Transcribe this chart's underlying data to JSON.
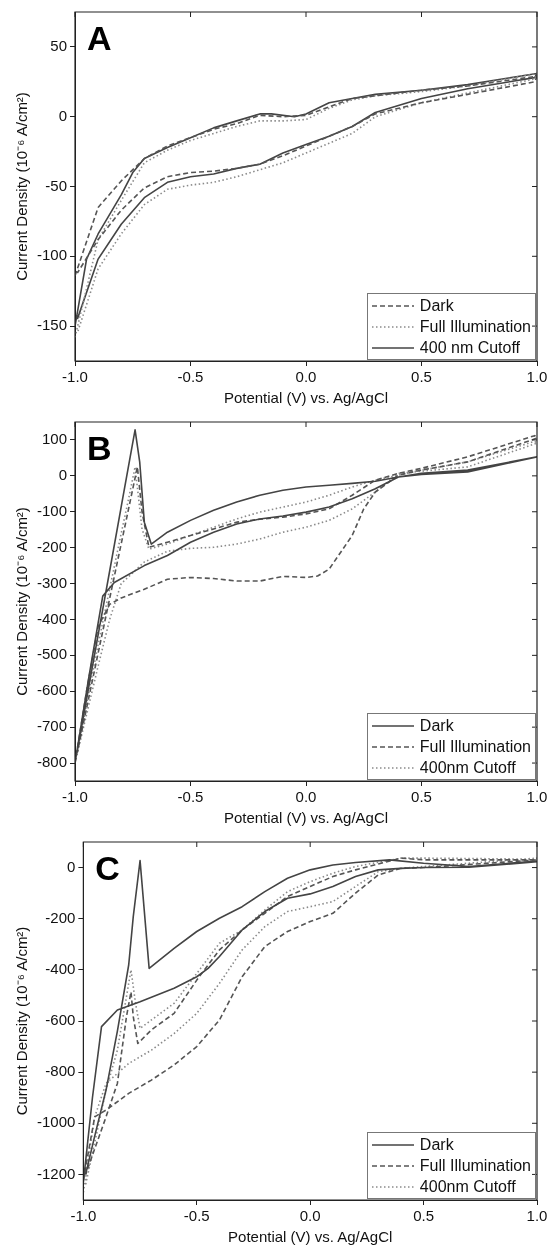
{
  "chart_data": [
    {
      "type": "line",
      "xlabel": "Potential (V) vs. Ag/AgCl",
      "ylabel": "Current Density (10⁻⁶ A/cm²)",
      "annotations": [
        "A"
      ],
      "xlim": [
        -1,
        1
      ],
      "xticks": [
        {
          "value": -1,
          "label": "-1.0"
        },
        {
          "value": -0.5,
          "label": "-0.5"
        },
        {
          "value": 0,
          "label": "0.0"
        },
        {
          "value": 0.5,
          "label": "0.5"
        },
        {
          "value": 1,
          "label": "1.0"
        }
      ],
      "ylim": [
        -175,
        75
      ],
      "yticks": [
        -150,
        -100,
        -50,
        0,
        50
      ],
      "grid": false,
      "legend": "bottom right",
      "marker": "none",
      "series": [
        {
          "name": "Dark",
          "color": "#555555",
          "line_style": "dashed",
          "x": [
            -1,
            -0.9,
            -0.8,
            -0.7,
            -0.6,
            -0.5,
            -0.4,
            -0.3,
            -0.2,
            -0.1,
            0,
            0.1,
            0.2,
            0.3,
            0.5,
            0.7,
            1,
            0.99,
            0.7,
            0.5,
            0.3,
            0.2,
            0.1,
            0,
            -0.1,
            -0.2,
            -0.3,
            -0.4,
            -0.5,
            -0.6,
            -0.7,
            -0.8,
            -0.9,
            -0.99
          ],
          "values": [
            -114,
            -65,
            -46,
            -30,
            -21,
            -15,
            -9,
            -5,
            1,
            0,
            1,
            7,
            13,
            15,
            19,
            22,
            29,
            25,
            16,
            10,
            2,
            -7,
            -14,
            -21,
            -28,
            -34,
            -37,
            -39,
            -40,
            -43,
            -51,
            -67,
            -88,
            -112
          ]
        },
        {
          "name": "Full Illumination",
          "color": "#8a8a8a",
          "line_style": "dotted",
          "x": [
            -1,
            -0.9,
            -0.8,
            -0.7,
            -0.6,
            -0.5,
            -0.4,
            -0.3,
            -0.2,
            -0.1,
            0,
            0.1,
            0.2,
            0.3,
            0.5,
            0.7,
            1,
            0.99,
            0.7,
            0.5,
            0.3,
            0.2,
            0.1,
            0,
            -0.1,
            -0.2,
            -0.3,
            -0.4,
            -0.5,
            -0.6,
            -0.7,
            -0.8,
            -0.9,
            -0.99
          ],
          "values": [
            -158,
            -88,
            -60,
            -33,
            -24,
            -17,
            -12,
            -7,
            -3,
            -3,
            -2,
            6,
            12,
            15,
            18,
            22,
            31,
            27,
            17,
            10,
            0,
            -12,
            -19,
            -26,
            -33,
            -38,
            -43,
            -47,
            -49,
            -52,
            -63,
            -84,
            -109,
            -155
          ]
        },
        {
          "name": "400 nm Cutoff",
          "color": "#444444",
          "line_style": "solid",
          "x": [
            -1,
            -0.95,
            -0.9,
            -0.8,
            -0.75,
            -0.7,
            -0.6,
            -0.5,
            -0.4,
            -0.3,
            -0.2,
            -0.15,
            -0.05,
            0,
            0.1,
            0.2,
            0.3,
            0.5,
            0.7,
            1,
            0.99,
            0.7,
            0.5,
            0.3,
            0.2,
            0.1,
            0,
            -0.1,
            -0.2,
            -0.3,
            -0.4,
            -0.5,
            -0.6,
            -0.7,
            -0.8,
            -0.9,
            -0.99
          ],
          "values": [
            -150,
            -102,
            -84,
            -56,
            -40,
            -30,
            -22,
            -15,
            -8,
            -3,
            2,
            2,
            0,
            2,
            10,
            13,
            16,
            19,
            23,
            31,
            28,
            20,
            13,
            3,
            -7,
            -14,
            -20,
            -26,
            -34,
            -37,
            -41,
            -43,
            -47,
            -58,
            -77,
            -102,
            -145
          ]
        }
      ]
    },
    {
      "type": "line",
      "xlabel": "Potential (V) vs. Ag/AgCl",
      "ylabel": "Current Density (10⁻⁶ A/cm²)",
      "annotations": [
        "B"
      ],
      "xlim": [
        -1,
        1
      ],
      "xticks": [
        {
          "value": -1,
          "label": "-1.0"
        },
        {
          "value": -0.5,
          "label": "-0.5"
        },
        {
          "value": 0,
          "label": "0.0"
        },
        {
          "value": 0.5,
          "label": "0.5"
        },
        {
          "value": 1,
          "label": "1.0"
        }
      ],
      "ylim": [
        -850,
        150
      ],
      "yticks": [
        -800,
        -700,
        -600,
        -500,
        -400,
        -300,
        -200,
        -100,
        0,
        100
      ],
      "grid": false,
      "legend": "bottom right",
      "marker": "none",
      "series": [
        {
          "name": "Dark",
          "color": "#444444",
          "line_style": "solid",
          "x": [
            -1,
            -0.94,
            -0.88,
            -0.83,
            -0.7,
            -0.6,
            -0.5,
            -0.4,
            -0.3,
            -0.2,
            -0.1,
            0,
            0.1,
            0.2,
            0.3,
            0.4,
            0.5,
            0.7,
            1,
            0.7,
            0.5,
            0.4,
            0.3,
            0.2,
            0.1,
            0,
            -0.1,
            -0.2,
            -0.3,
            -0.4,
            -0.5,
            -0.6,
            -0.67,
            -0.7,
            -0.72,
            -0.74,
            -0.76,
            -0.8,
            -0.85,
            -0.9,
            -0.99
          ],
          "values": [
            -800,
            -560,
            -335,
            -297,
            -250,
            -222,
            -185,
            -157,
            -134,
            -120,
            -112,
            -101,
            -87,
            -64,
            -36,
            -3,
            7,
            16,
            53,
            11,
            4,
            -3,
            -15,
            -21,
            -26,
            -31,
            -40,
            -54,
            -73,
            -96,
            -124,
            -157,
            -190,
            -129,
            39,
            128,
            57,
            -86,
            -265,
            -443,
            -765
          ]
        },
        {
          "name": "Full Illumination",
          "color": "#555555",
          "line_style": "dashed",
          "x": [
            -1,
            -0.95,
            -0.9,
            -0.85,
            -0.8,
            -0.7,
            -0.6,
            -0.5,
            -0.4,
            -0.3,
            -0.2,
            -0.1,
            0,
            0.05,
            0.1,
            0.2,
            0.25,
            0.3,
            0.4,
            0.5,
            0.7,
            1,
            0.99,
            0.7,
            0.5,
            0.4,
            0.3,
            0.2,
            0.1,
            0,
            -0.1,
            -0.2,
            -0.3,
            -0.4,
            -0.5,
            -0.6,
            -0.68,
            -0.71,
            -0.73,
            -0.76,
            -0.8,
            -0.9,
            -0.99
          ],
          "values": [
            -800,
            -600,
            -420,
            -358,
            -340,
            -316,
            -288,
            -283,
            -286,
            -293,
            -293,
            -280,
            -283,
            -279,
            -260,
            -166,
            -92,
            -45,
            2,
            16,
            39,
            105,
            112,
            53,
            21,
            7,
            -12,
            -54,
            -92,
            -106,
            -115,
            -121,
            -129,
            -148,
            -166,
            -185,
            -199,
            -100,
            25,
            -67,
            -189,
            -494,
            -770
          ]
        },
        {
          "name": "400nm Cutoff",
          "color": "#8a8a8a",
          "line_style": "dotted",
          "x": [
            -1,
            -0.9,
            -0.85,
            -0.8,
            -0.7,
            -0.6,
            -0.5,
            -0.4,
            -0.3,
            -0.2,
            -0.1,
            0,
            0.1,
            0.2,
            0.3,
            0.4,
            0.5,
            0.7,
            1,
            0.99,
            0.7,
            0.5,
            0.4,
            0.3,
            0.2,
            0.1,
            0,
            -0.1,
            -0.2,
            -0.3,
            -0.4,
            -0.5,
            -0.6,
            -0.68,
            -0.71,
            -0.74,
            -0.77,
            -0.8,
            -0.9,
            -0.99
          ],
          "values": [
            -800,
            -530,
            -400,
            -300,
            -240,
            -210,
            -202,
            -199,
            -190,
            -176,
            -157,
            -143,
            -124,
            -92,
            -45,
            7,
            13,
            25,
            91,
            96,
            39,
            16,
            2,
            -12,
            -31,
            -54,
            -73,
            -87,
            -101,
            -120,
            -143,
            -166,
            -190,
            -204,
            -148,
            25,
            -70,
            -160,
            -470,
            -770
          ]
        }
      ]
    },
    {
      "type": "line",
      "xlabel": "Potential (V) vs. Ag/AgCl",
      "ylabel": "Current Density (10⁻⁶ A/cm²)",
      "annotations": [
        "C"
      ],
      "xlim": [
        -1,
        1
      ],
      "xticks": [
        {
          "value": -1,
          "label": "-1.0"
        },
        {
          "value": -0.5,
          "label": "-0.5"
        },
        {
          "value": 0,
          "label": "0.0"
        },
        {
          "value": 0.5,
          "label": "0.5"
        },
        {
          "value": 1,
          "label": "1.0"
        }
      ],
      "ylim": [
        -1300,
        100
      ],
      "yticks": [
        -1200,
        -1000,
        -800,
        -600,
        -400,
        -200,
        0
      ],
      "grid": false,
      "legend": "bottom right",
      "marker": "none",
      "series": [
        {
          "name": "Dark",
          "color": "#444444",
          "line_style": "solid",
          "x": [
            -1,
            -0.96,
            -0.92,
            -0.85,
            -0.75,
            -0.6,
            -0.5,
            -0.45,
            -0.4,
            -0.3,
            -0.2,
            -0.1,
            0,
            0.1,
            0.2,
            0.3,
            0.4,
            0.5,
            0.7,
            1,
            0.99,
            0.7,
            0.5,
            0.35,
            0.2,
            0.1,
            0,
            -0.1,
            -0.2,
            -0.3,
            -0.4,
            -0.5,
            -0.6,
            -0.71,
            -0.75,
            -0.78,
            -0.8,
            -0.85,
            -0.9,
            -0.95,
            -0.99
          ],
          "values": [
            -1230,
            -900,
            -622,
            -557,
            -525,
            -472,
            -427,
            -394,
            -348,
            -244,
            -172,
            -120,
            -103,
            -74,
            -35,
            -9,
            -3,
            0,
            1,
            23,
            25,
            4,
            17,
            30,
            20,
            10,
            -9,
            -42,
            -94,
            -153,
            -198,
            -250,
            -316,
            -394,
            27,
            -192,
            -380,
            -640,
            -870,
            -1050,
            -1200
          ]
        },
        {
          "name": "Full Illumination",
          "color": "#555555",
          "line_style": "dashed",
          "x": [
            -1,
            -0.95,
            -0.9,
            -0.8,
            -0.7,
            -0.6,
            -0.5,
            -0.4,
            -0.3,
            -0.2,
            -0.1,
            0,
            0.1,
            0.2,
            0.3,
            0.4,
            0.5,
            1,
            0.99,
            0.5,
            0.4,
            0.2,
            0.1,
            0,
            -0.1,
            -0.2,
            -0.3,
            -0.4,
            -0.5,
            -0.6,
            -0.7,
            -0.76,
            -0.78,
            -0.79,
            -0.81,
            -0.85,
            -0.9,
            -0.99
          ],
          "values": [
            -1222,
            -975,
            -948,
            -883,
            -831,
            -772,
            -700,
            -596,
            -427,
            -309,
            -250,
            -211,
            -179,
            -100,
            -29,
            -3,
            0,
            30,
            30,
            30,
            37,
            -9,
            -35,
            -74,
            -113,
            -179,
            -244,
            -322,
            -440,
            -570,
            -635,
            -688,
            -583,
            -486,
            -583,
            -844,
            -975,
            -1200
          ]
        },
        {
          "name": "400nm Cutoff",
          "color": "#8a8a8a",
          "line_style": "dotted",
          "x": [
            -1,
            -0.95,
            -0.9,
            -0.8,
            -0.7,
            -0.6,
            -0.5,
            -0.4,
            -0.3,
            -0.2,
            -0.1,
            0,
            0.1,
            0.2,
            0.3,
            0.4,
            0.5,
            1,
            0.99,
            0.5,
            0.4,
            0.2,
            0.1,
            0,
            -0.1,
            -0.2,
            -0.3,
            -0.4,
            -0.5,
            -0.6,
            -0.7,
            -0.75,
            -0.77,
            -0.79,
            -0.81,
            -0.85,
            -0.9,
            -0.99
          ],
          "values": [
            -1270,
            -975,
            -844,
            -766,
            -714,
            -649,
            -570,
            -453,
            -322,
            -231,
            -172,
            -153,
            -133,
            -74,
            -16,
            -3,
            4,
            37,
            33,
            37,
            37,
            4,
            -22,
            -55,
            -94,
            -166,
            -244,
            -296,
            -414,
            -531,
            -596,
            -629,
            -531,
            -400,
            -505,
            -714,
            -870,
            -1240
          ]
        }
      ]
    }
  ]
}
